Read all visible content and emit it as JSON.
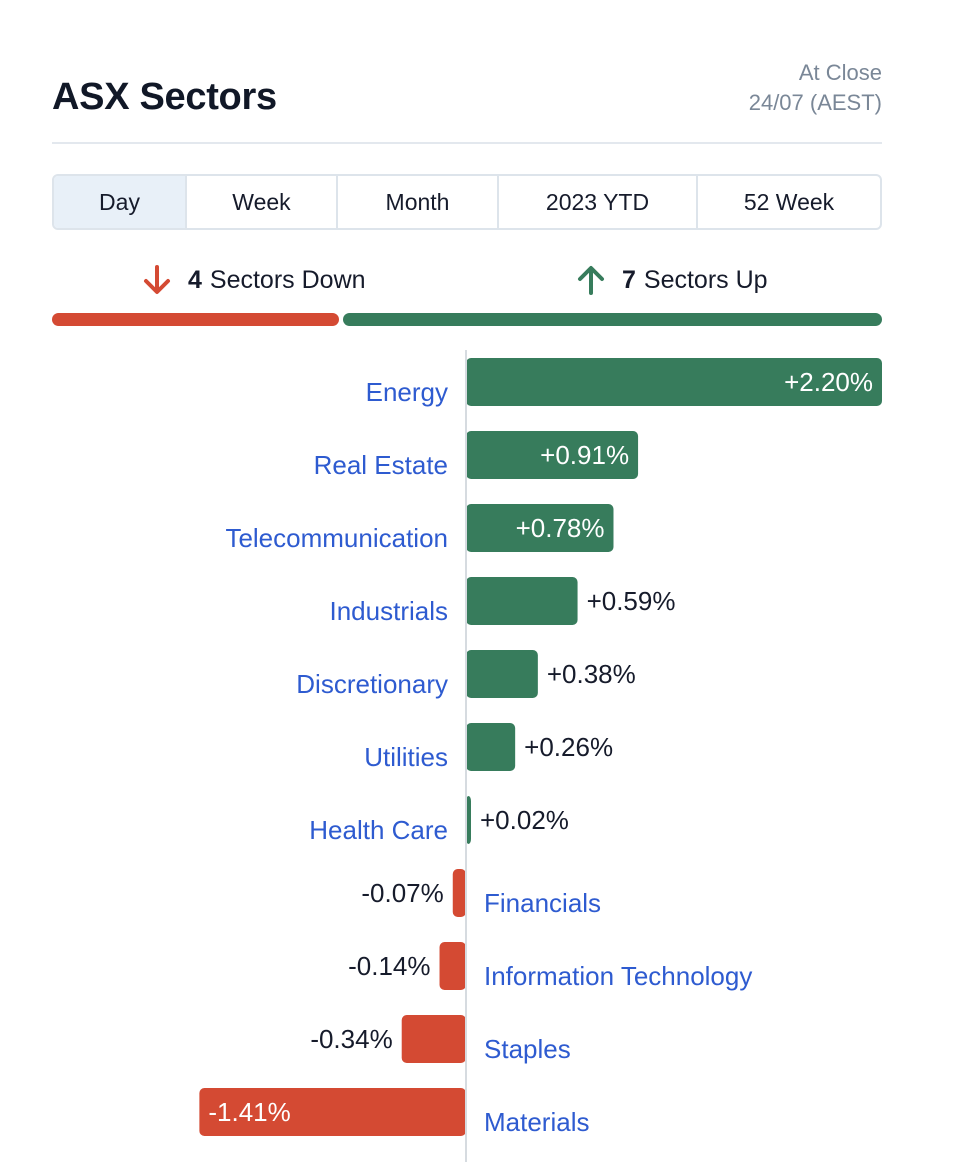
{
  "header": {
    "title": "ASX Sectors",
    "status_line1": "At Close",
    "status_line2": "24/07 (AEST)"
  },
  "tabs": [
    {
      "label": "Day",
      "active": true
    },
    {
      "label": "Week",
      "active": false
    },
    {
      "label": "Month",
      "active": false
    },
    {
      "label": "2023 YTD",
      "active": false
    },
    {
      "label": "52 Week",
      "active": false
    }
  ],
  "summary": {
    "down_count": "4",
    "down_label": "Sectors Down",
    "down_icon": "arrow-down-icon",
    "up_count": "7",
    "up_label": "Sectors Up",
    "up_icon": "arrow-up-icon"
  },
  "colors": {
    "up": "#377c5c",
    "down": "#d44a33",
    "label": "#2e5bd0",
    "value": "#161b2b",
    "axis": "#d6dbe0"
  },
  "chart_data": {
    "type": "bar",
    "orientation": "horizontal",
    "categories": [
      "Energy",
      "Real Estate",
      "Telecommunication",
      "Industrials",
      "Discretionary",
      "Utilities",
      "Health Care",
      "Financials",
      "Information Technology",
      "Staples",
      "Materials"
    ],
    "values": [
      2.2,
      0.91,
      0.78,
      0.59,
      0.38,
      0.26,
      0.02,
      -0.07,
      -0.14,
      -0.34,
      -1.41
    ],
    "value_labels": [
      "+2.20%",
      "+0.91%",
      "+0.78%",
      "+0.59%",
      "+0.38%",
      "+0.26%",
      "+0.02%",
      "-0.07%",
      "-0.14%",
      "-0.34%",
      "-1.41%"
    ],
    "unit": "%"
  }
}
